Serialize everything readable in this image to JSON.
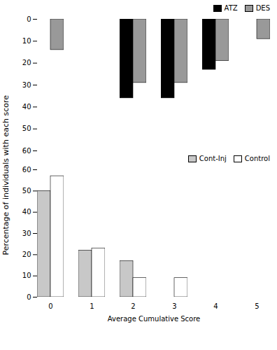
{
  "chart_data": [
    {
      "type": "bar",
      "ylabel": "Percentage of individuals with each score",
      "categories": [
        0,
        1,
        2,
        3,
        4,
        5
      ],
      "series": [
        {
          "name": "ATZ",
          "color": "#000000",
          "values": [
            0,
            0,
            36,
            36,
            23,
            0
          ]
        },
        {
          "name": "DES",
          "color": "#999999",
          "values": [
            14,
            0,
            29,
            29,
            19,
            9
          ]
        }
      ],
      "ylim": [
        60,
        0
      ],
      "yticks": [
        0,
        10,
        20,
        30,
        40,
        50,
        60
      ],
      "legend": "upper right",
      "tick_labels": "y"
    },
    {
      "type": "bar",
      "xlabel": "Average Cumulative Score",
      "categories": [
        0,
        1,
        2,
        3,
        4,
        5
      ],
      "series": [
        {
          "name": "Cont-Inj",
          "color": "#c8c8c8",
          "values": [
            50,
            22,
            17,
            0,
            0,
            0
          ]
        },
        {
          "name": "Control",
          "color": "#ffffff",
          "values": [
            57,
            23,
            9,
            9,
            0,
            0
          ]
        }
      ],
      "ylim": [
        0,
        60
      ],
      "yticks": [
        0,
        10,
        20,
        30,
        40,
        50,
        60
      ],
      "legend": "upper right"
    }
  ]
}
